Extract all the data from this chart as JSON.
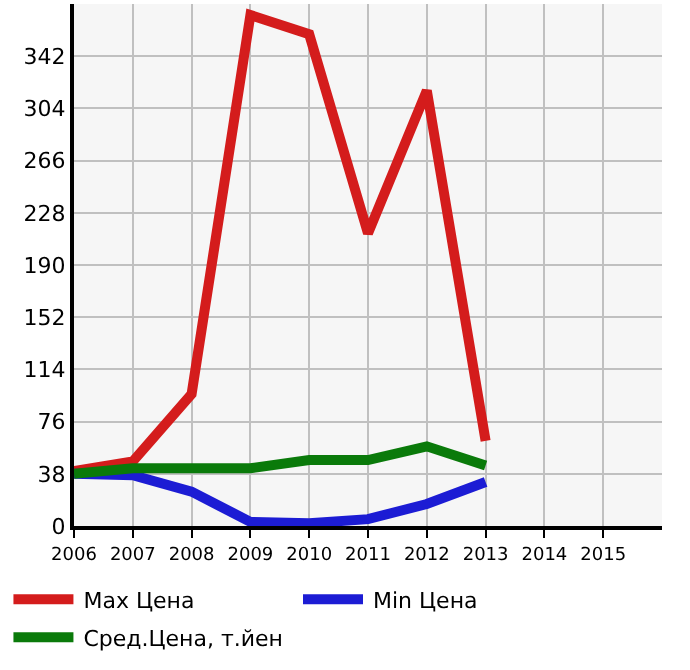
{
  "chart_data": {
    "type": "line",
    "x": [
      2006,
      2007,
      2008,
      2009,
      2010,
      2011,
      2012,
      2013
    ],
    "series": [
      {
        "name": "Max Цена",
        "color": "#d41c1c",
        "values": [
          40,
          47,
          96,
          372,
          358,
          213,
          317,
          62
        ]
      },
      {
        "name": "Min Цена",
        "color": "#1c1cd4",
        "values": [
          38,
          37,
          25,
          3,
          2,
          5,
          16,
          32
        ]
      },
      {
        "name": "Сред.Цена, т.йен",
        "color": "#0a7a0a",
        "values": [
          38,
          42,
          42,
          42,
          48,
          48,
          58,
          44
        ]
      }
    ],
    "xlim": [
      2006,
      2016
    ],
    "xticks": [
      2006,
      2007,
      2008,
      2009,
      2010,
      2011,
      2012,
      2013,
      2014,
      2015
    ],
    "ylim": [
      0,
      380
    ],
    "yticks": [
      0,
      38,
      76,
      114,
      152,
      190,
      228,
      266,
      304,
      342
    ],
    "grid": true,
    "legend": "bottom",
    "marker": "none",
    "line_style": "solid"
  }
}
